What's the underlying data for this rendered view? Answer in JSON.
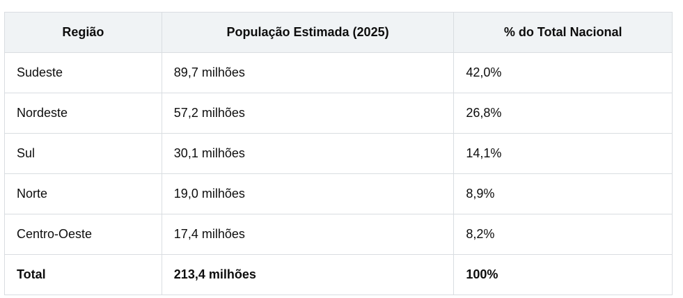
{
  "table": {
    "headers": [
      "Região",
      "População Estimada (2025)",
      "% do Total Nacional"
    ],
    "rows": [
      [
        "Sudeste",
        "89,7 milhões",
        "42,0%"
      ],
      [
        "Nordeste",
        "57,2 milhões",
        "26,8%"
      ],
      [
        "Sul",
        "30,1 milhões",
        "14,1%"
      ],
      [
        "Norte",
        "19,0 milhões",
        "8,9%"
      ],
      [
        "Centro-Oeste",
        "17,4 milhões",
        "8,2%"
      ]
    ],
    "total": [
      "Total",
      "213,4 milhões",
      "100%"
    ]
  }
}
